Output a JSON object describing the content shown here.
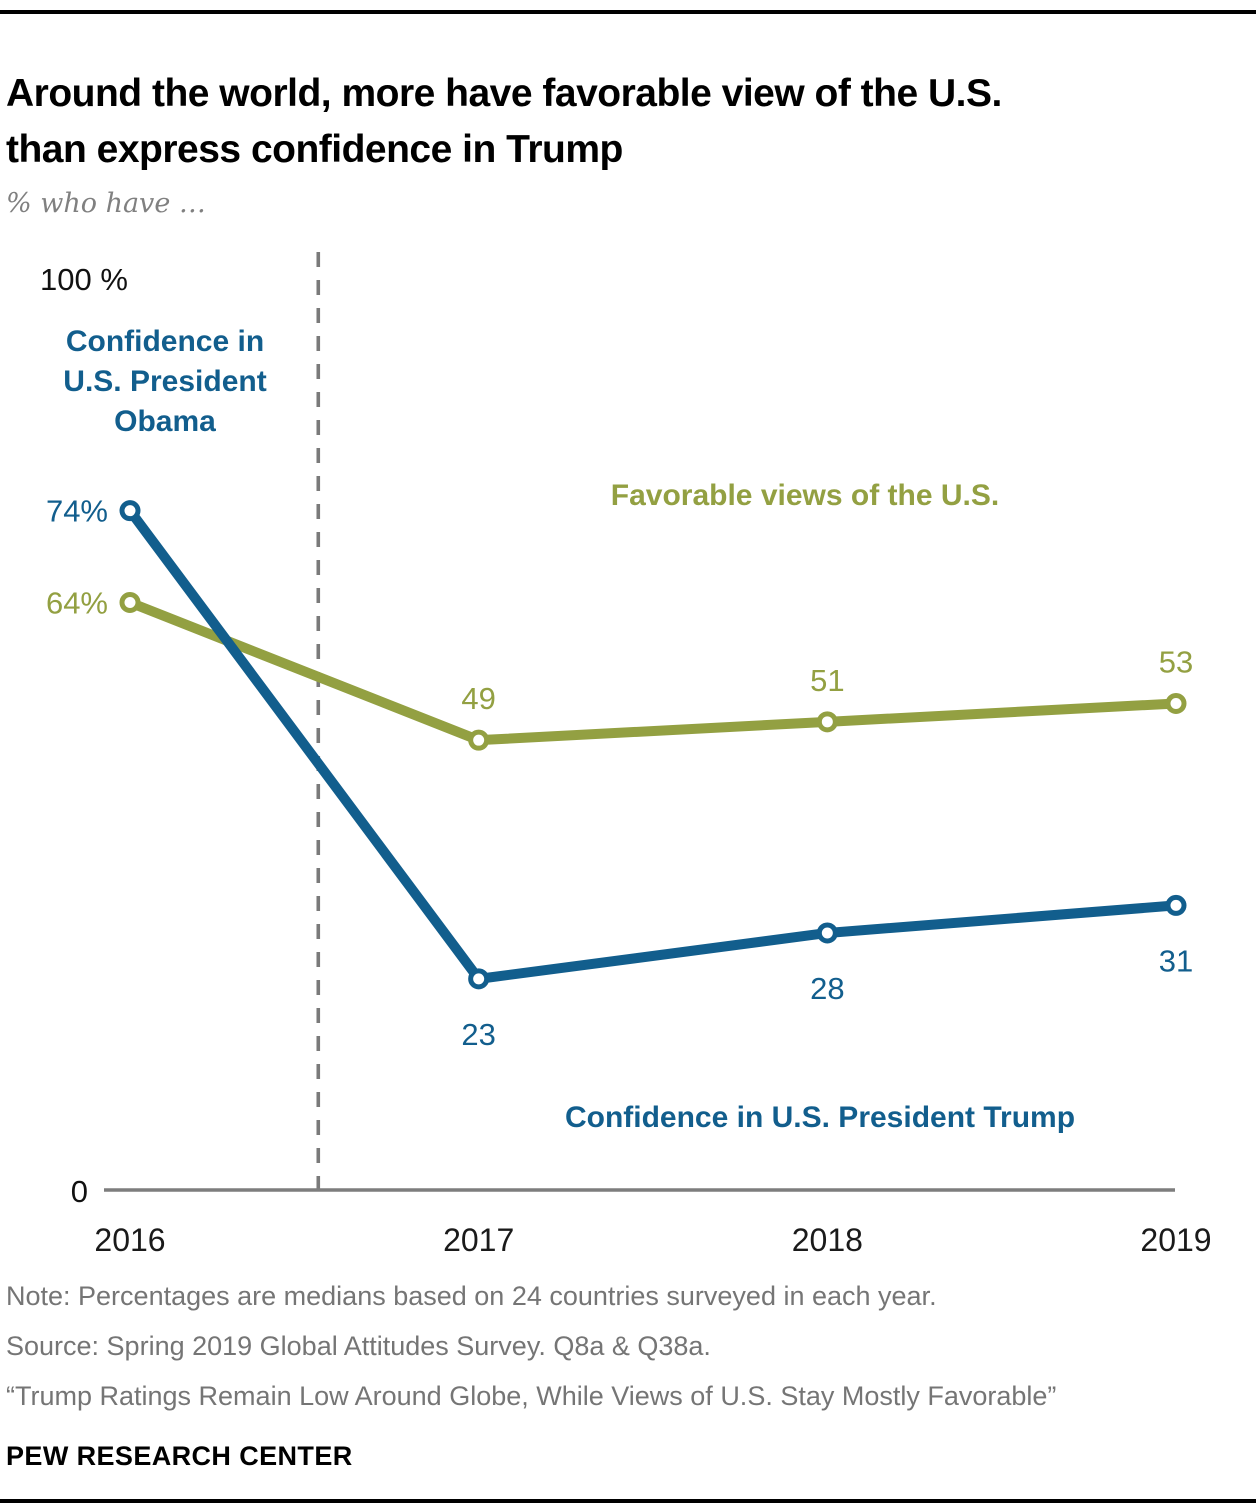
{
  "header": {
    "title": "Around the world, more have favorable view of the U.S.\nthan express confidence in Trump",
    "subtitle": "% who have …"
  },
  "chart_data": {
    "type": "line",
    "x": [
      2016,
      2017,
      2018,
      2019
    ],
    "x_tick_labels": [
      "2016",
      "2017",
      "2018",
      "2019"
    ],
    "series": [
      {
        "name": "Favorable views of the U.S.",
        "values": [
          64,
          49,
          51,
          53
        ],
        "labels": [
          "64%",
          "49",
          "51",
          "53"
        ],
        "color": "#93a042",
        "label_side": "above"
      },
      {
        "name": "Confidence in U.S. President",
        "values": [
          74,
          23,
          28,
          31
        ],
        "labels": [
          "74%",
          "23",
          "28",
          "31"
        ],
        "color": "#125e8d",
        "label_side": "below"
      }
    ],
    "ylim": [
      0,
      100
    ],
    "y_top_label": "100 %",
    "y_zero_label": "0",
    "grid": false,
    "legend_position": "inline-annotations",
    "divider_year": 2016.54,
    "divider_color": "#7a7a7a",
    "axis_color": "#7d7d7d",
    "tick_label_color": "#1a1a1a",
    "annotations": {
      "obama": "Confidence in\nU.S. President\nObama",
      "favorable": "Favorable views of the U.S.",
      "trump": "Confidence in U.S. President Trump"
    }
  },
  "footer": {
    "note": "Note: Percentages are medians based on 24 countries surveyed in each year.",
    "source": "Source: Spring 2019 Global Attitudes Survey. Q8a & Q38a.",
    "quote": "“Trump Ratings Remain Low Around Globe, While Views of U.S. Stay Mostly Favorable”",
    "brand": "PEW RESEARCH CENTER"
  }
}
